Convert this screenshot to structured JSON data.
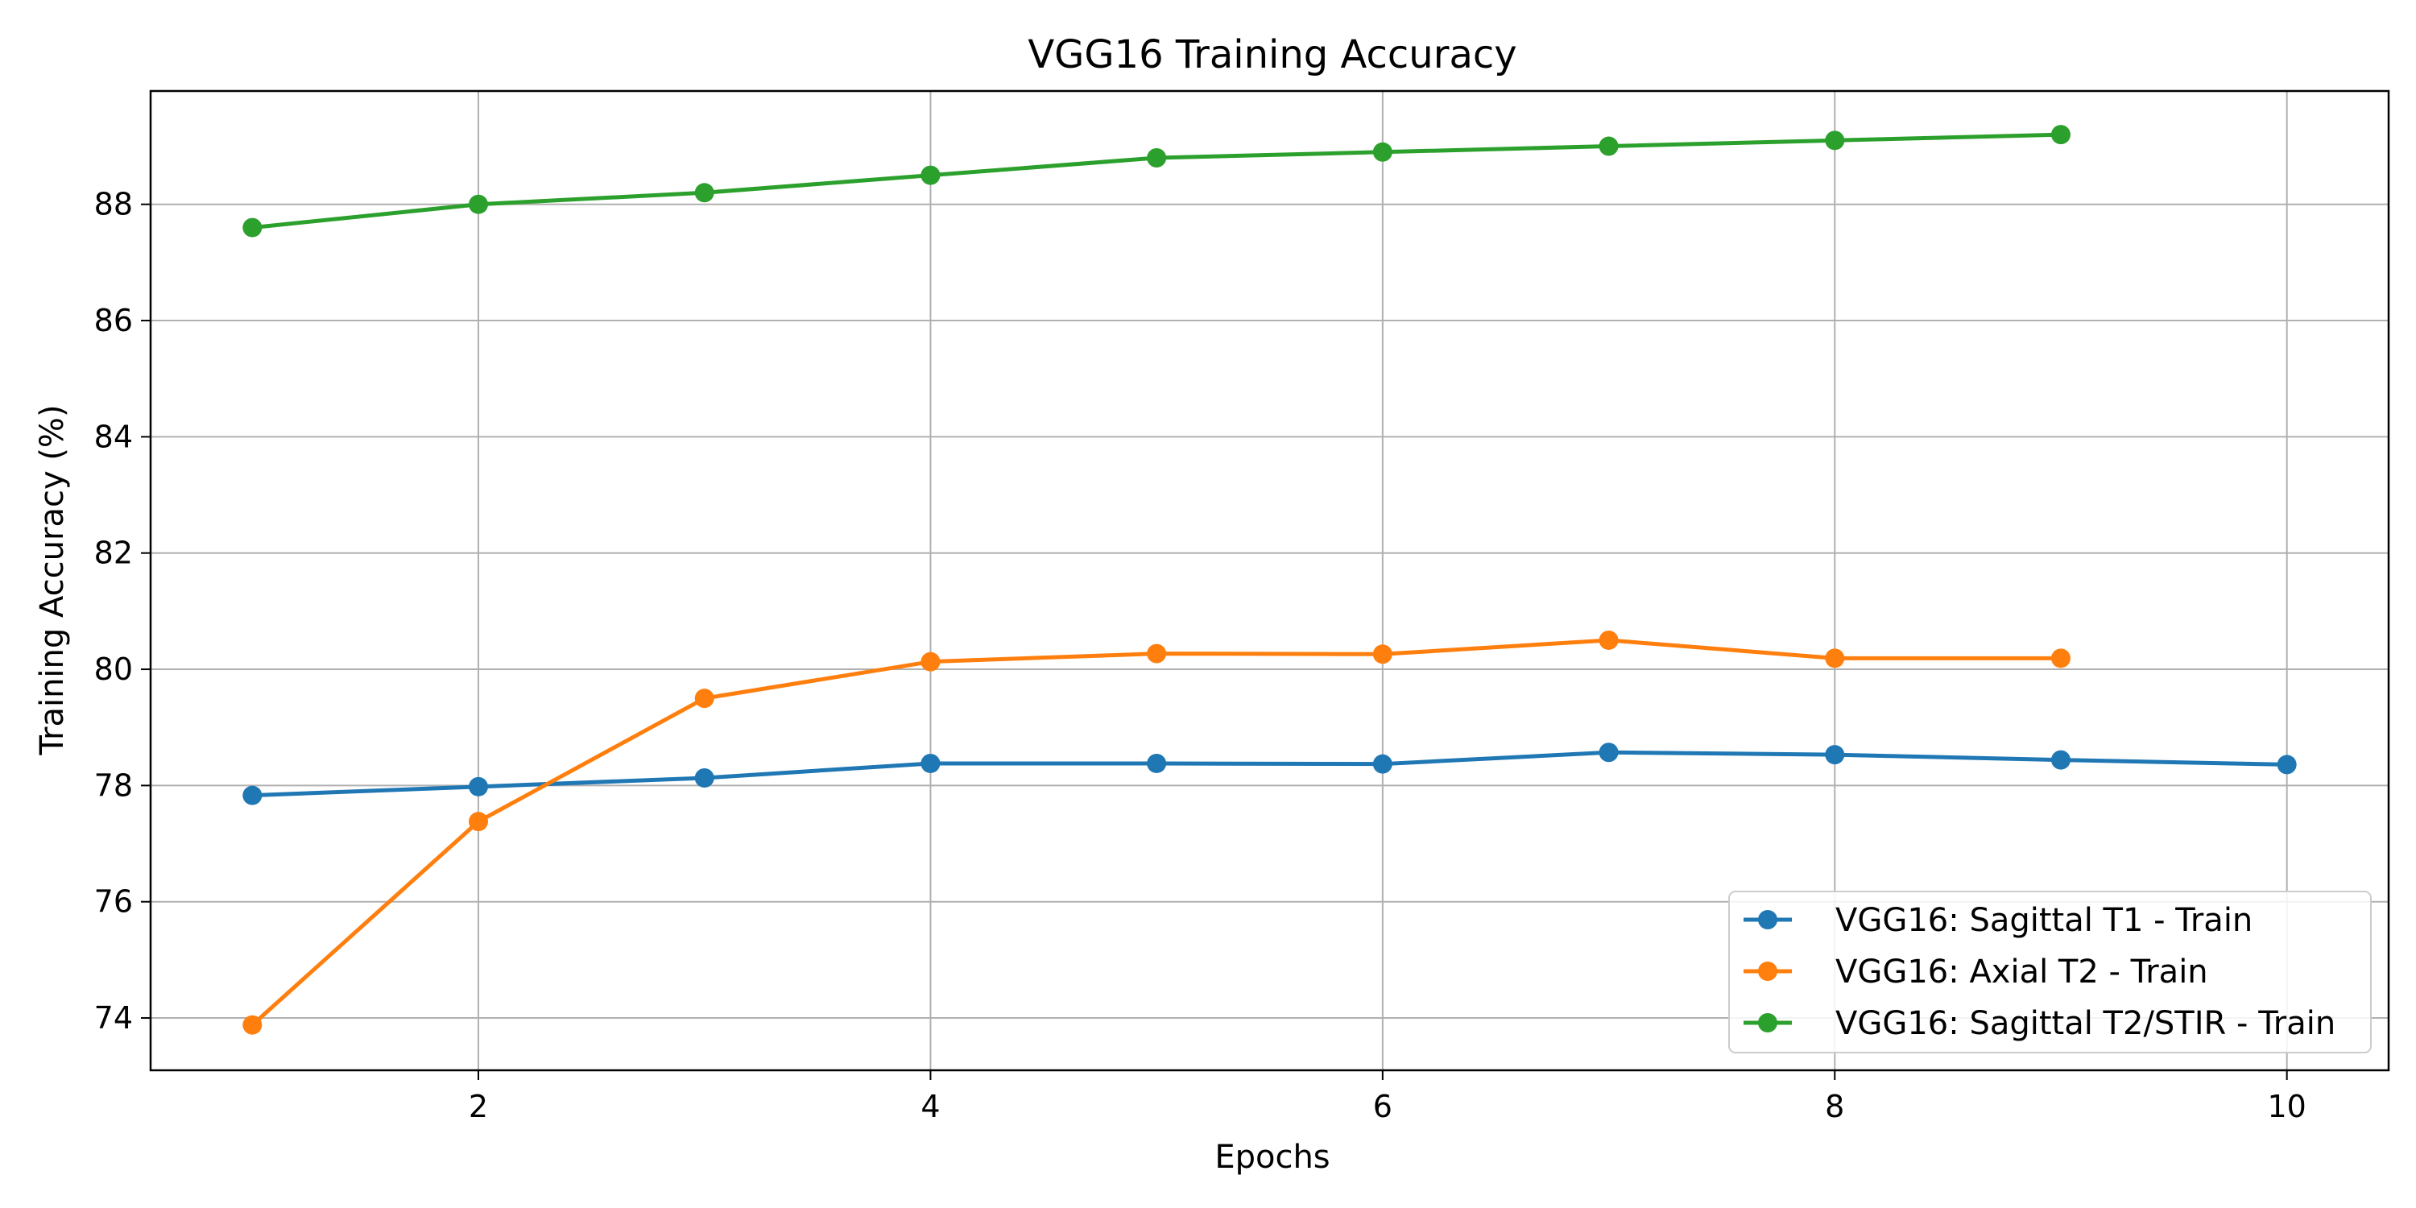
{
  "chart_data": {
    "type": "line",
    "title": "VGG16 Training Accuracy",
    "xlabel": "Epochs",
    "ylabel": "Training Accuracy (%)",
    "xlim": [
      0.55,
      10.45
    ],
    "ylim": [
      73.1,
      89.95
    ],
    "xticks": [
      2,
      4,
      6,
      8,
      10
    ],
    "yticks": [
      74,
      76,
      78,
      80,
      82,
      84,
      86,
      88
    ],
    "grid": true,
    "legend_position": "lower-right",
    "series": [
      {
        "name": "VGG16: Sagittal T1 - Train",
        "color": "#1f77b4",
        "x": [
          1,
          2,
          3,
          4,
          5,
          6,
          7,
          8,
          9,
          10
        ],
        "values": [
          77.83,
          77.98,
          78.13,
          78.38,
          78.38,
          78.37,
          78.57,
          78.53,
          78.44,
          78.36
        ]
      },
      {
        "name": "VGG16: Axial T2 - Train",
        "color": "#ff7f0e",
        "x": [
          1,
          2,
          3,
          4,
          5,
          6,
          7,
          8,
          9
        ],
        "values": [
          73.88,
          77.38,
          79.5,
          80.13,
          80.27,
          80.26,
          80.5,
          80.19,
          80.19
        ]
      },
      {
        "name": "VGG16: Sagittal T2/STIR - Train",
        "color": "#2ca02c",
        "x": [
          1,
          2,
          3,
          4,
          5,
          6,
          7,
          8,
          9
        ],
        "values": [
          87.6,
          88.0,
          88.2,
          88.5,
          88.8,
          88.9,
          89.0,
          89.1,
          89.2
        ]
      }
    ]
  }
}
